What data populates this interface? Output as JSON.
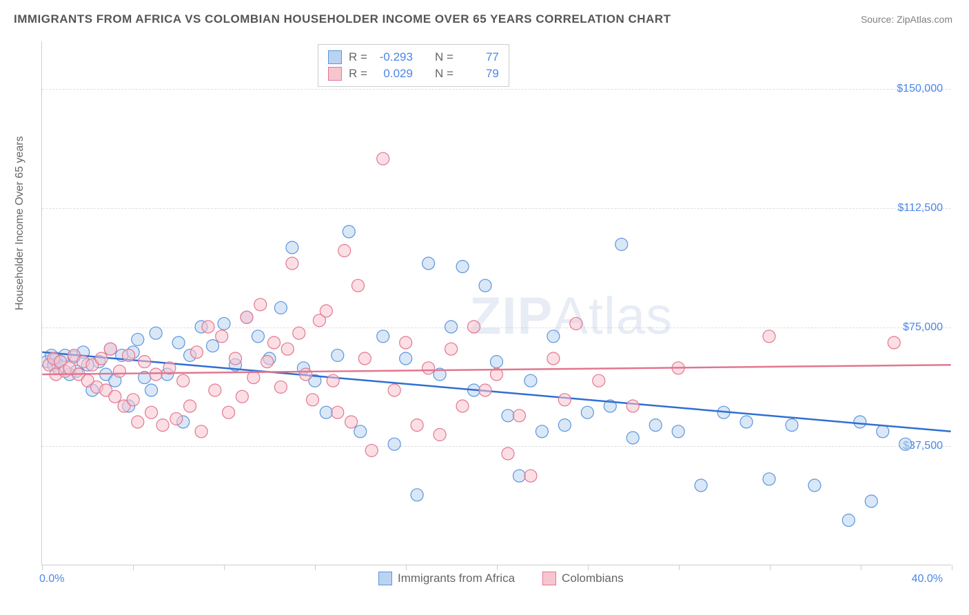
{
  "title": "IMMIGRANTS FROM AFRICA VS COLOMBIAN HOUSEHOLDER INCOME OVER 65 YEARS CORRELATION CHART",
  "source": "Source: ZipAtlas.com",
  "watermark": "ZIPAtlas",
  "chart": {
    "type": "scatter",
    "background_color": "#ffffff",
    "grid_color": "#dddddd",
    "border_color": "#cccccc",
    "xlim": [
      0,
      40
    ],
    "ylim": [
      0,
      165000
    ],
    "x_unit": "%",
    "y_unit": "$",
    "x_ticks_pct": [
      0,
      4,
      8,
      12,
      16,
      20,
      24,
      28,
      32,
      36,
      40
    ],
    "y_gridlines": [
      37500,
      75000,
      112500,
      150000
    ],
    "y_tick_labels": [
      "$37,500",
      "$75,000",
      "$112,500",
      "$150,000"
    ],
    "xaxis_min_label": "0.0%",
    "xaxis_max_label": "40.0%",
    "yaxis_label": "Householder Income Over 65 years",
    "axis_label_color": "#666666",
    "tick_value_color": "#4a86e8",
    "axis_label_fontsize": 16,
    "tick_fontsize": 16,
    "marker_radius": 9,
    "marker_opacity": 0.55,
    "marker_stroke_width": 1.2,
    "regression_line_width": 2.5,
    "series": [
      {
        "key": "africa",
        "label": "Immigrants from Africa",
        "fill": "#b9d3f0",
        "stroke": "#5b95dd",
        "line_color": "#2f6fd0",
        "R": "-0.293",
        "N": "77",
        "regression": {
          "y_at_x0": 67000,
          "y_at_x40": 42000
        },
        "points": [
          [
            0.2,
            64000
          ],
          [
            0.4,
            66000
          ],
          [
            0.5,
            63000
          ],
          [
            0.6,
            65000
          ],
          [
            0.7,
            62000
          ],
          [
            0.8,
            64000
          ],
          [
            1.0,
            66000
          ],
          [
            1.2,
            60000
          ],
          [
            1.4,
            65500
          ],
          [
            1.5,
            61000
          ],
          [
            1.8,
            67000
          ],
          [
            2.0,
            63000
          ],
          [
            2.2,
            55000
          ],
          [
            2.5,
            64000
          ],
          [
            2.8,
            60000
          ],
          [
            3.0,
            68000
          ],
          [
            3.2,
            58000
          ],
          [
            3.5,
            66000
          ],
          [
            3.8,
            50000
          ],
          [
            4.0,
            67000
          ],
          [
            4.2,
            71000
          ],
          [
            4.5,
            59000
          ],
          [
            4.8,
            55000
          ],
          [
            5.0,
            73000
          ],
          [
            5.5,
            60000
          ],
          [
            6.0,
            70000
          ],
          [
            6.2,
            45000
          ],
          [
            6.5,
            66000
          ],
          [
            7.0,
            75000
          ],
          [
            7.5,
            69000
          ],
          [
            8.0,
            76000
          ],
          [
            8.5,
            63000
          ],
          [
            9.0,
            78000
          ],
          [
            9.5,
            72000
          ],
          [
            10.0,
            65000
          ],
          [
            10.5,
            81000
          ],
          [
            11.0,
            100000
          ],
          [
            11.5,
            62000
          ],
          [
            12.0,
            58000
          ],
          [
            12.5,
            48000
          ],
          [
            13.0,
            66000
          ],
          [
            13.5,
            105000
          ],
          [
            14.0,
            42000
          ],
          [
            15.0,
            72000
          ],
          [
            15.5,
            38000
          ],
          [
            16.0,
            65000
          ],
          [
            16.5,
            22000
          ],
          [
            17.0,
            95000
          ],
          [
            17.5,
            60000
          ],
          [
            18.0,
            75000
          ],
          [
            18.5,
            94000
          ],
          [
            19.0,
            55000
          ],
          [
            19.5,
            88000
          ],
          [
            20.0,
            64000
          ],
          [
            20.5,
            47000
          ],
          [
            21.0,
            28000
          ],
          [
            21.5,
            58000
          ],
          [
            22.0,
            42000
          ],
          [
            22.5,
            72000
          ],
          [
            23.0,
            44000
          ],
          [
            24.0,
            48000
          ],
          [
            25.0,
            50000
          ],
          [
            25.5,
            101000
          ],
          [
            26.0,
            40000
          ],
          [
            27.0,
            44000
          ],
          [
            28.0,
            42000
          ],
          [
            29.0,
            25000
          ],
          [
            30.0,
            48000
          ],
          [
            31.0,
            45000
          ],
          [
            32.0,
            27000
          ],
          [
            33.0,
            44000
          ],
          [
            34.0,
            25000
          ],
          [
            35.5,
            14000
          ],
          [
            36.0,
            45000
          ],
          [
            36.5,
            20000
          ],
          [
            37.0,
            42000
          ],
          [
            38.0,
            38000
          ]
        ]
      },
      {
        "key": "colombians",
        "label": "Colombians",
        "fill": "#f7c5d0",
        "stroke": "#e2768f",
        "line_color": "#e2768f",
        "R": "0.029",
        "N": "79",
        "regression": {
          "y_at_x0": 60000,
          "y_at_x40": 63000
        },
        "points": [
          [
            0.3,
            63000
          ],
          [
            0.5,
            65000
          ],
          [
            0.6,
            60000
          ],
          [
            0.8,
            64000
          ],
          [
            1.0,
            61000
          ],
          [
            1.2,
            62000
          ],
          [
            1.4,
            66000
          ],
          [
            1.6,
            60000
          ],
          [
            1.8,
            64000
          ],
          [
            2.0,
            58000
          ],
          [
            2.2,
            63000
          ],
          [
            2.4,
            56000
          ],
          [
            2.6,
            65000
          ],
          [
            2.8,
            55000
          ],
          [
            3.0,
            68000
          ],
          [
            3.2,
            53000
          ],
          [
            3.4,
            61000
          ],
          [
            3.6,
            50000
          ],
          [
            3.8,
            66000
          ],
          [
            4.0,
            52000
          ],
          [
            4.2,
            45000
          ],
          [
            4.5,
            64000
          ],
          [
            4.8,
            48000
          ],
          [
            5.0,
            60000
          ],
          [
            5.3,
            44000
          ],
          [
            5.6,
            62000
          ],
          [
            5.9,
            46000
          ],
          [
            6.2,
            58000
          ],
          [
            6.5,
            50000
          ],
          [
            6.8,
            67000
          ],
          [
            7.0,
            42000
          ],
          [
            7.3,
            75000
          ],
          [
            7.6,
            55000
          ],
          [
            7.9,
            72000
          ],
          [
            8.2,
            48000
          ],
          [
            8.5,
            65000
          ],
          [
            8.8,
            53000
          ],
          [
            9.0,
            78000
          ],
          [
            9.3,
            59000
          ],
          [
            9.6,
            82000
          ],
          [
            9.9,
            64000
          ],
          [
            10.2,
            70000
          ],
          [
            10.5,
            56000
          ],
          [
            10.8,
            68000
          ],
          [
            11.0,
            95000
          ],
          [
            11.3,
            73000
          ],
          [
            11.6,
            60000
          ],
          [
            11.9,
            52000
          ],
          [
            12.2,
            77000
          ],
          [
            12.5,
            80000
          ],
          [
            12.8,
            58000
          ],
          [
            13.0,
            48000
          ],
          [
            13.3,
            99000
          ],
          [
            13.6,
            45000
          ],
          [
            13.9,
            88000
          ],
          [
            14.2,
            65000
          ],
          [
            14.5,
            36000
          ],
          [
            15.0,
            128000
          ],
          [
            15.5,
            55000
          ],
          [
            16.0,
            70000
          ],
          [
            16.5,
            44000
          ],
          [
            17.0,
            62000
          ],
          [
            17.5,
            41000
          ],
          [
            18.0,
            68000
          ],
          [
            18.5,
            50000
          ],
          [
            19.0,
            75000
          ],
          [
            19.5,
            55000
          ],
          [
            20.0,
            60000
          ],
          [
            20.5,
            35000
          ],
          [
            21.0,
            47000
          ],
          [
            21.5,
            28000
          ],
          [
            22.5,
            65000
          ],
          [
            23.0,
            52000
          ],
          [
            23.5,
            76000
          ],
          [
            24.5,
            58000
          ],
          [
            26.0,
            50000
          ],
          [
            28.0,
            62000
          ],
          [
            32.0,
            72000
          ],
          [
            37.5,
            70000
          ]
        ]
      }
    ],
    "stats_box": {
      "columns": [
        "R =",
        "N ="
      ]
    },
    "bottom_legend": [
      {
        "key": "africa",
        "label": "Immigrants from Africa"
      },
      {
        "key": "colombians",
        "label": "Colombians"
      }
    ]
  }
}
